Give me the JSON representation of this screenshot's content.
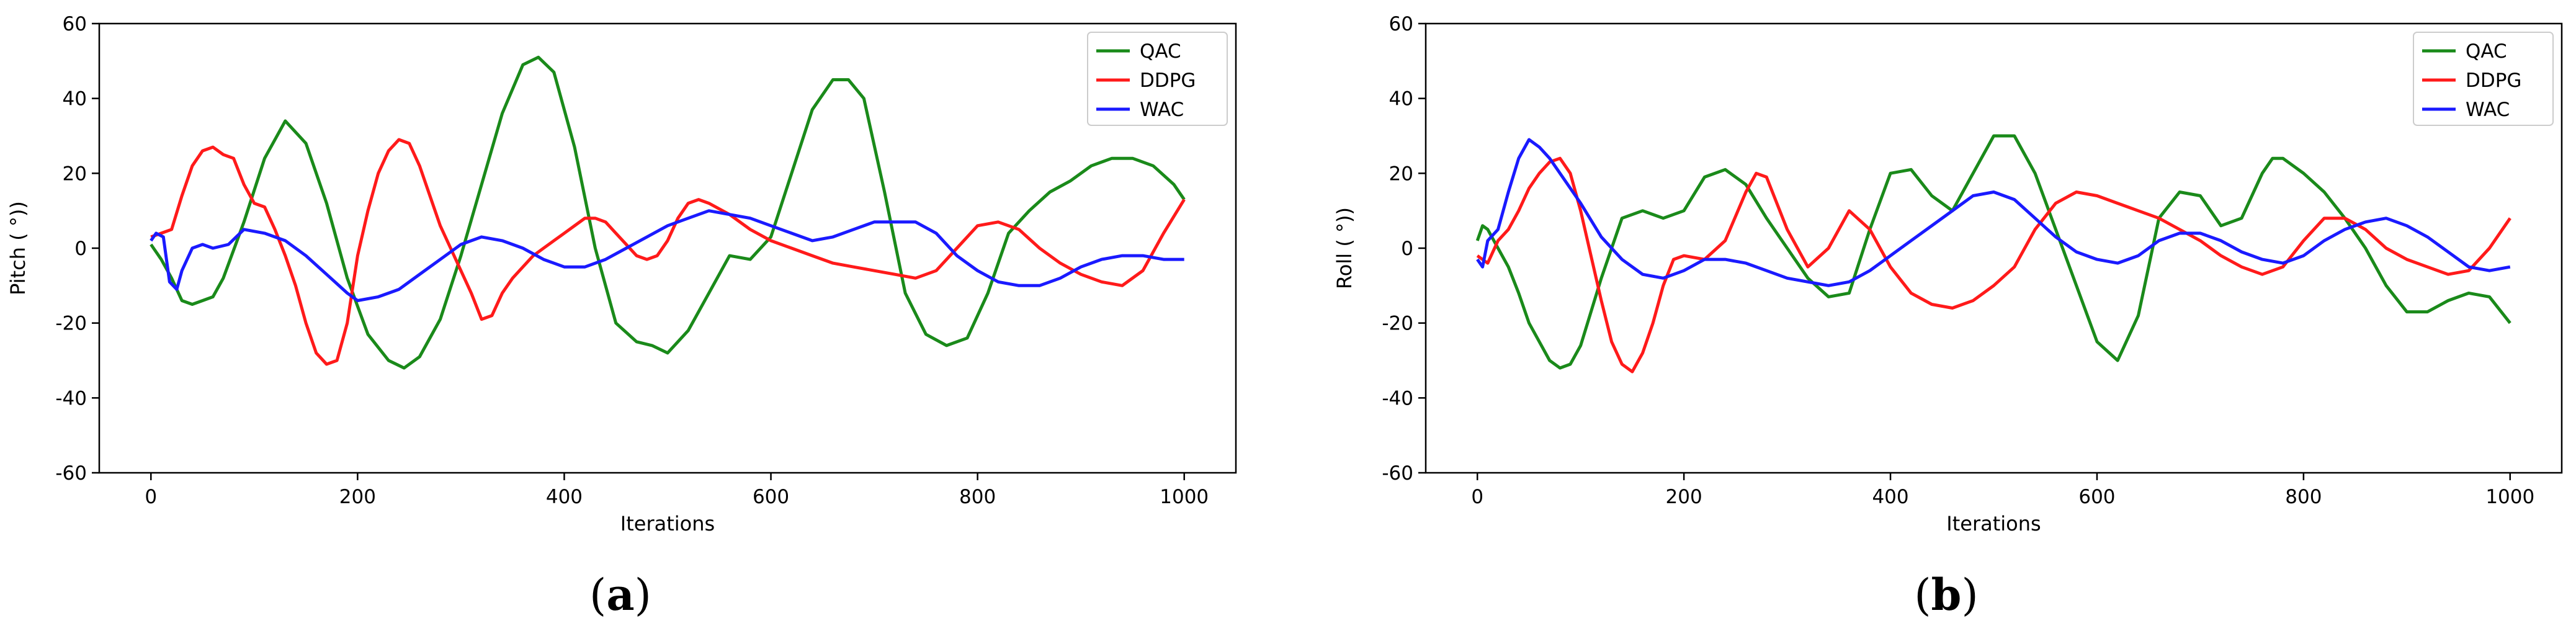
{
  "colors": {
    "QAC": "#1a8a1a",
    "DDPG": "#ff1a1a",
    "WAC": "#1a1aff"
  },
  "chart_data": [
    {
      "type": "line",
      "panel": "(a)",
      "caption": {
        "open": "(",
        "letter": "a",
        "close": ")"
      },
      "xlabel": "Iterations",
      "ylabel": "Pitch ( °))",
      "xlim": [
        -50,
        1050
      ],
      "ylim": [
        -60,
        60
      ],
      "xticks": [
        0,
        200,
        400,
        600,
        800,
        1000
      ],
      "yticks": [
        -60,
        -40,
        -20,
        0,
        20,
        40,
        60
      ],
      "legend_position": "top-right",
      "series": [
        {
          "name": "QAC",
          "x": [
            0,
            10,
            20,
            30,
            40,
            50,
            60,
            70,
            90,
            110,
            130,
            150,
            170,
            190,
            210,
            230,
            245,
            260,
            280,
            300,
            320,
            340,
            360,
            375,
            390,
            410,
            430,
            450,
            470,
            485,
            500,
            520,
            540,
            560,
            580,
            600,
            620,
            640,
            660,
            675,
            690,
            710,
            730,
            750,
            770,
            790,
            810,
            830,
            850,
            870,
            890,
            910,
            930,
            950,
            970,
            990,
            1000
          ],
          "values": [
            1,
            -3,
            -8,
            -14,
            -15,
            -14,
            -13,
            -8,
            7,
            24,
            34,
            28,
            12,
            -8,
            -23,
            -30,
            -32,
            -29,
            -19,
            -2,
            17,
            36,
            49,
            51,
            47,
            27,
            0,
            -20,
            -25,
            -26,
            -28,
            -22,
            -12,
            -2,
            -3,
            3,
            20,
            37,
            45,
            45,
            40,
            15,
            -12,
            -23,
            -26,
            -24,
            -12,
            4,
            10,
            15,
            18,
            22,
            24,
            24,
            22,
            17,
            13
          ]
        },
        {
          "name": "DDPG",
          "x": [
            0,
            10,
            20,
            30,
            40,
            50,
            60,
            70,
            80,
            90,
            100,
            110,
            120,
            130,
            140,
            150,
            160,
            170,
            180,
            190,
            200,
            210,
            220,
            230,
            240,
            250,
            260,
            270,
            280,
            290,
            300,
            310,
            320,
            330,
            340,
            350,
            360,
            370,
            380,
            390,
            400,
            410,
            420,
            430,
            440,
            450,
            460,
            470,
            480,
            490,
            500,
            510,
            520,
            530,
            540,
            560,
            580,
            600,
            620,
            640,
            660,
            680,
            700,
            720,
            740,
            760,
            780,
            800,
            820,
            840,
            860,
            880,
            900,
            920,
            940,
            960,
            980,
            1000
          ],
          "values": [
            3,
            4,
            5,
            14,
            22,
            26,
            27,
            25,
            24,
            17,
            12,
            11,
            5,
            -2,
            -10,
            -20,
            -28,
            -31,
            -30,
            -20,
            -2,
            10,
            20,
            26,
            29,
            28,
            22,
            14,
            6,
            0,
            -6,
            -12,
            -19,
            -18,
            -12,
            -8,
            -5,
            -2,
            0,
            2,
            4,
            6,
            8,
            8,
            7,
            4,
            1,
            -2,
            -3,
            -2,
            2,
            8,
            12,
            13,
            12,
            9,
            5,
            2,
            0,
            -2,
            -4,
            -5,
            -6,
            -7,
            -8,
            -6,
            0,
            6,
            7,
            5,
            0,
            -4,
            -7,
            -9,
            -10,
            -6,
            4,
            13
          ]
        },
        {
          "name": "WAC",
          "x": [
            0,
            5,
            12,
            18,
            25,
            30,
            40,
            50,
            60,
            75,
            90,
            110,
            130,
            150,
            170,
            190,
            200,
            220,
            240,
            260,
            280,
            300,
            320,
            340,
            360,
            380,
            400,
            420,
            440,
            460,
            480,
            500,
            520,
            540,
            560,
            580,
            600,
            620,
            640,
            660,
            680,
            700,
            720,
            740,
            760,
            780,
            800,
            820,
            840,
            860,
            880,
            900,
            920,
            940,
            960,
            980,
            1000
          ],
          "values": [
            2,
            4,
            3,
            -9,
            -11,
            -6,
            0,
            1,
            0,
            1,
            5,
            4,
            2,
            -2,
            -7,
            -12,
            -14,
            -13,
            -11,
            -7,
            -3,
            1,
            3,
            2,
            0,
            -3,
            -5,
            -5,
            -3,
            0,
            3,
            6,
            8,
            10,
            9,
            8,
            6,
            4,
            2,
            3,
            5,
            7,
            7,
            7,
            4,
            -2,
            -6,
            -9,
            -10,
            -10,
            -8,
            -5,
            -3,
            -2,
            -2,
            -3,
            -3
          ]
        }
      ]
    },
    {
      "type": "line",
      "panel": "(b)",
      "caption": {
        "open": "(",
        "letter": "b",
        "close": ")"
      },
      "xlabel": "Iterations",
      "ylabel": "Roll ( °))",
      "xlim": [
        -50,
        1050
      ],
      "ylim": [
        -60,
        60
      ],
      "xticks": [
        0,
        200,
        400,
        600,
        800,
        1000
      ],
      "yticks": [
        -60,
        -40,
        -20,
        0,
        20,
        40,
        60
      ],
      "legend_position": "top-right",
      "series": [
        {
          "name": "QAC",
          "x": [
            0,
            5,
            10,
            20,
            30,
            40,
            50,
            60,
            70,
            80,
            90,
            100,
            120,
            140,
            160,
            180,
            200,
            220,
            240,
            260,
            280,
            300,
            320,
            340,
            360,
            380,
            400,
            420,
            440,
            460,
            480,
            500,
            520,
            540,
            560,
            580,
            600,
            620,
            640,
            660,
            680,
            700,
            720,
            740,
            760,
            770,
            780,
            800,
            820,
            840,
            860,
            880,
            900,
            920,
            940,
            960,
            980,
            1000
          ],
          "values": [
            2,
            6,
            5,
            0,
            -5,
            -12,
            -20,
            -25,
            -30,
            -32,
            -31,
            -26,
            -8,
            8,
            10,
            8,
            10,
            19,
            21,
            17,
            8,
            0,
            -8,
            -13,
            -12,
            5,
            20,
            21,
            14,
            10,
            20,
            30,
            30,
            20,
            5,
            -10,
            -25,
            -30,
            -18,
            8,
            15,
            14,
            6,
            8,
            20,
            24,
            24,
            20,
            15,
            8,
            0,
            -10,
            -17,
            -17,
            -14,
            -12,
            -13,
            -20
          ]
        },
        {
          "name": "DDPG",
          "x": [
            0,
            10,
            20,
            30,
            40,
            50,
            60,
            70,
            80,
            90,
            100,
            110,
            120,
            130,
            140,
            150,
            160,
            170,
            180,
            190,
            200,
            220,
            240,
            260,
            270,
            280,
            300,
            320,
            340,
            360,
            380,
            400,
            420,
            440,
            460,
            480,
            500,
            520,
            540,
            560,
            580,
            600,
            620,
            640,
            660,
            680,
            700,
            720,
            740,
            760,
            780,
            800,
            820,
            840,
            860,
            880,
            900,
            920,
            940,
            960,
            980,
            1000
          ],
          "values": [
            -2,
            -4,
            2,
            5,
            10,
            16,
            20,
            23,
            24,
            20,
            10,
            -2,
            -14,
            -25,
            -31,
            -33,
            -28,
            -20,
            -10,
            -3,
            -2,
            -3,
            2,
            15,
            20,
            19,
            5,
            -5,
            0,
            10,
            5,
            -5,
            -12,
            -15,
            -16,
            -14,
            -10,
            -5,
            5,
            12,
            15,
            14,
            12,
            10,
            8,
            5,
            2,
            -2,
            -5,
            -7,
            -5,
            2,
            8,
            8,
            5,
            0,
            -3,
            -5,
            -7,
            -6,
            0,
            8
          ]
        },
        {
          "name": "WAC",
          "x": [
            0,
            5,
            10,
            20,
            30,
            40,
            50,
            60,
            70,
            80,
            100,
            120,
            140,
            160,
            180,
            200,
            220,
            240,
            260,
            280,
            300,
            320,
            340,
            360,
            380,
            400,
            420,
            440,
            460,
            480,
            500,
            520,
            540,
            560,
            580,
            600,
            620,
            640,
            660,
            680,
            700,
            720,
            740,
            760,
            780,
            800,
            820,
            840,
            860,
            880,
            900,
            920,
            940,
            960,
            980,
            1000
          ],
          "values": [
            -3,
            -5,
            2,
            5,
            15,
            24,
            29,
            27,
            24,
            20,
            12,
            3,
            -3,
            -7,
            -8,
            -6,
            -3,
            -3,
            -4,
            -6,
            -8,
            -9,
            -10,
            -9,
            -6,
            -2,
            2,
            6,
            10,
            14,
            15,
            13,
            8,
            3,
            -1,
            -3,
            -4,
            -2,
            2,
            4,
            4,
            2,
            -1,
            -3,
            -4,
            -2,
            2,
            5,
            7,
            8,
            6,
            3,
            -1,
            -5,
            -6,
            -5
          ]
        }
      ]
    }
  ]
}
